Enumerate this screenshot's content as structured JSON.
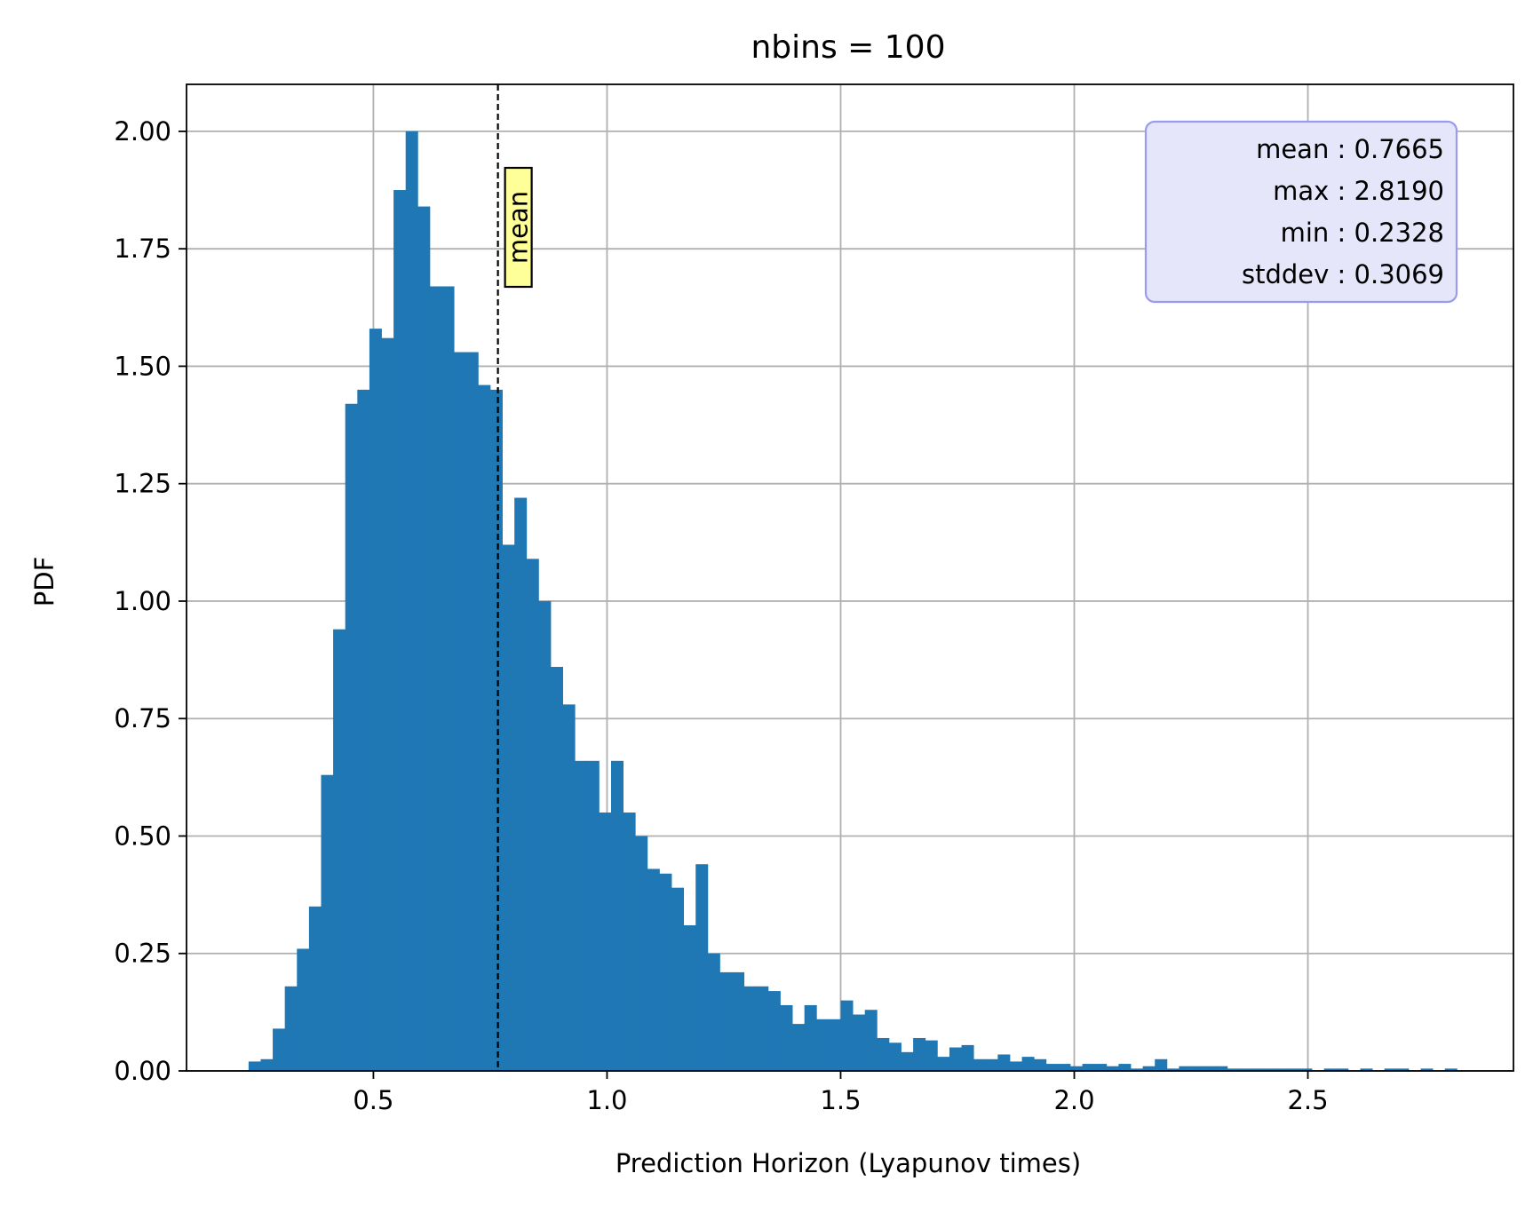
{
  "chart_data": {
    "type": "bar",
    "title": "nbins = 100",
    "xlabel": "Prediction Horizon (Lyapunov times)",
    "ylabel": "PDF",
    "xlim": [
      0.1,
      2.94
    ],
    "ylim": [
      0,
      2.1
    ],
    "xticks": [
      0.5,
      1.0,
      1.5,
      2.0,
      2.5
    ],
    "xtick_labels": [
      "0.5",
      "1.0",
      "1.5",
      "2.0",
      "2.5"
    ],
    "yticks": [
      0,
      0.25,
      0.5,
      0.75,
      1.0,
      1.25,
      1.5,
      1.75,
      2.0
    ],
    "ytick_labels": [
      "0.00",
      "0.25",
      "0.50",
      "0.75",
      "1.00",
      "1.25",
      "1.50",
      "1.75",
      "2.00"
    ],
    "grid": true,
    "bar_color": "#1f77b4",
    "bins": {
      "start": 0.2328,
      "end": 2.819,
      "count": 100,
      "values": [
        0.02,
        0.025,
        0.09,
        0.18,
        0.26,
        0.35,
        0.63,
        0.94,
        1.42,
        1.45,
        1.58,
        1.56,
        1.875,
        2.0,
        1.84,
        1.67,
        1.67,
        1.53,
        1.53,
        1.46,
        1.45,
        1.12,
        1.22,
        1.09,
        1.0,
        0.86,
        0.78,
        0.66,
        0.66,
        0.55,
        0.66,
        0.55,
        0.5,
        0.43,
        0.42,
        0.39,
        0.31,
        0.44,
        0.25,
        0.21,
        0.21,
        0.18,
        0.18,
        0.17,
        0.14,
        0.1,
        0.14,
        0.11,
        0.11,
        0.15,
        0.12,
        0.13,
        0.07,
        0.06,
        0.04,
        0.07,
        0.065,
        0.03,
        0.05,
        0.055,
        0.025,
        0.025,
        0.035,
        0.02,
        0.03,
        0.025,
        0.015,
        0.015,
        0.01,
        0.015,
        0.015,
        0.01,
        0.015,
        0.005,
        0.01,
        0.025,
        0.005,
        0.01,
        0.01,
        0.01,
        0.01,
        0.005,
        0.005,
        0.005,
        0.005,
        0.005,
        0.005,
        0.005,
        0.0,
        0.005,
        0.005,
        0.0,
        0.005,
        0.0,
        0.005,
        0.005,
        0.0,
        0.005,
        0.0,
        0.005
      ]
    },
    "mean_line": {
      "x": 0.7665,
      "label": "mean",
      "label_bg": "#ffff99"
    },
    "stats_box": {
      "lines": [
        "mean : 0.7665",
        "max : 2.8190",
        "min : 0.2328",
        "stddev : 0.3069"
      ],
      "placement": "top-right",
      "bg": "#e6e6fa",
      "border": "#9a9af0"
    }
  }
}
